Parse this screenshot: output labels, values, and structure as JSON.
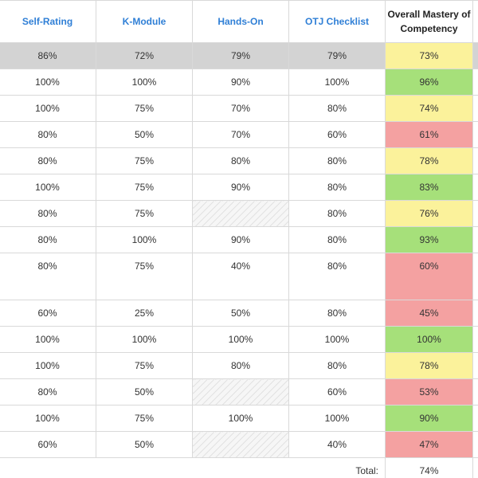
{
  "columns": {
    "self_rating": "Self-Rating",
    "k_module": "K-Module",
    "hands_on": "Hands-On",
    "otj_checklist": "OTJ Checklist",
    "mastery": "Overall Mastery of Competency"
  },
  "colors": {
    "header_link": "#2f7fd6",
    "average_row": "#d3d3d3",
    "mastery_green": "#a6e07a",
    "mastery_yellow": "#fbf29b",
    "mastery_red": "#f4a1a1"
  },
  "average_row": {
    "self_rating": "86%",
    "k_module": "72%",
    "hands_on": "79%",
    "otj_checklist": "79%",
    "mastery": "73%",
    "mastery_status": "yellow"
  },
  "rows": [
    {
      "self_rating": "100%",
      "k_module": "100%",
      "hands_on": "90%",
      "otj_checklist": "100%",
      "mastery": "96%",
      "mastery_status": "green"
    },
    {
      "self_rating": "100%",
      "k_module": "75%",
      "hands_on": "70%",
      "otj_checklist": "80%",
      "mastery": "74%",
      "mastery_status": "yellow"
    },
    {
      "self_rating": "80%",
      "k_module": "50%",
      "hands_on": "70%",
      "otj_checklist": "60%",
      "mastery": "61%",
      "mastery_status": "red"
    },
    {
      "self_rating": "80%",
      "k_module": "75%",
      "hands_on": "80%",
      "otj_checklist": "80%",
      "mastery": "78%",
      "mastery_status": "yellow"
    },
    {
      "self_rating": "100%",
      "k_module": "75%",
      "hands_on": "90%",
      "otj_checklist": "80%",
      "mastery": "83%",
      "mastery_status": "green"
    },
    {
      "self_rating": "80%",
      "k_module": "75%",
      "hands_on": null,
      "otj_checklist": "80%",
      "mastery": "76%",
      "mastery_status": "yellow"
    },
    {
      "self_rating": "80%",
      "k_module": "100%",
      "hands_on": "90%",
      "otj_checklist": "80%",
      "mastery": "93%",
      "mastery_status": "green"
    },
    {
      "self_rating": "80%",
      "k_module": "75%",
      "hands_on": "40%",
      "otj_checklist": "80%",
      "mastery": "60%",
      "mastery_status": "red",
      "tall": true
    },
    {
      "self_rating": "60%",
      "k_module": "25%",
      "hands_on": "50%",
      "otj_checklist": "80%",
      "mastery": "45%",
      "mastery_status": "red"
    },
    {
      "self_rating": "100%",
      "k_module": "100%",
      "hands_on": "100%",
      "otj_checklist": "100%",
      "mastery": "100%",
      "mastery_status": "green"
    },
    {
      "self_rating": "100%",
      "k_module": "75%",
      "hands_on": "80%",
      "otj_checklist": "80%",
      "mastery": "78%",
      "mastery_status": "yellow"
    },
    {
      "self_rating": "80%",
      "k_module": "50%",
      "hands_on": null,
      "otj_checklist": "60%",
      "mastery": "53%",
      "mastery_status": "red"
    },
    {
      "self_rating": "100%",
      "k_module": "75%",
      "hands_on": "100%",
      "otj_checklist": "100%",
      "mastery": "90%",
      "mastery_status": "green"
    },
    {
      "self_rating": "60%",
      "k_module": "50%",
      "hands_on": null,
      "otj_checklist": "40%",
      "mastery": "47%",
      "mastery_status": "red"
    }
  ],
  "total": {
    "label": "Total:",
    "value": "74%"
  }
}
